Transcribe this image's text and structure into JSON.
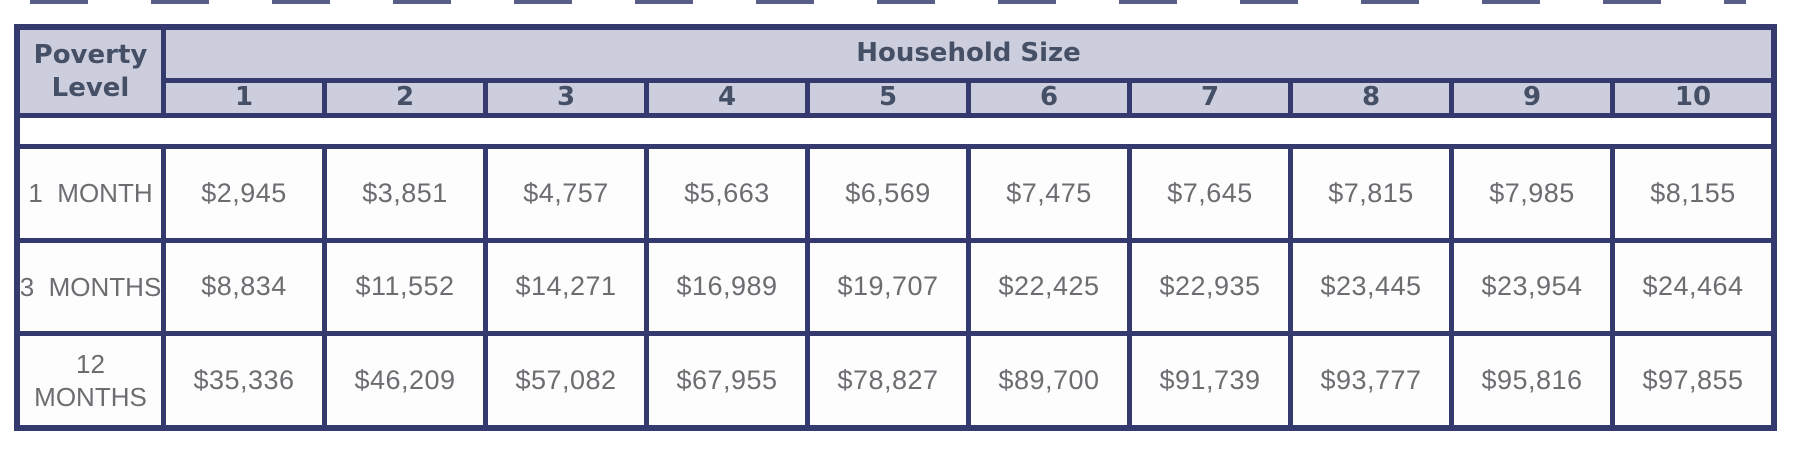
{
  "table": {
    "corner_header": "Poverty\nLevel",
    "group_header": "Household Size",
    "column_headers": [
      "1",
      "2",
      "3",
      "4",
      "5",
      "6",
      "7",
      "8",
      "9",
      "10"
    ],
    "rows": [
      {
        "label": "1  MONTH",
        "values": [
          "$2,945",
          "$3,851",
          "$4,757",
          "$5,663",
          "$6,569",
          "$7,475",
          "$7,645",
          "$7,815",
          "$7,985",
          "$8,155"
        ]
      },
      {
        "label": "3  MONTHS",
        "values": [
          "$8,834",
          "$11,552",
          "$14,271",
          "$16,989",
          "$19,707",
          "$22,425",
          "$22,935",
          "$23,445",
          "$23,954",
          "$24,464"
        ]
      },
      {
        "label": "12\nMONTHS",
        "values": [
          "$35,336",
          "$46,209",
          "$57,082",
          "$67,955",
          "$78,827",
          "$89,700",
          "$91,739",
          "$93,777",
          "$95,816",
          "$97,855"
        ]
      }
    ]
  },
  "colors": {
    "border": "#343a6e",
    "header_bg": "#cccddd",
    "header_text": "#455066",
    "cell_text": "#6c6d70"
  }
}
